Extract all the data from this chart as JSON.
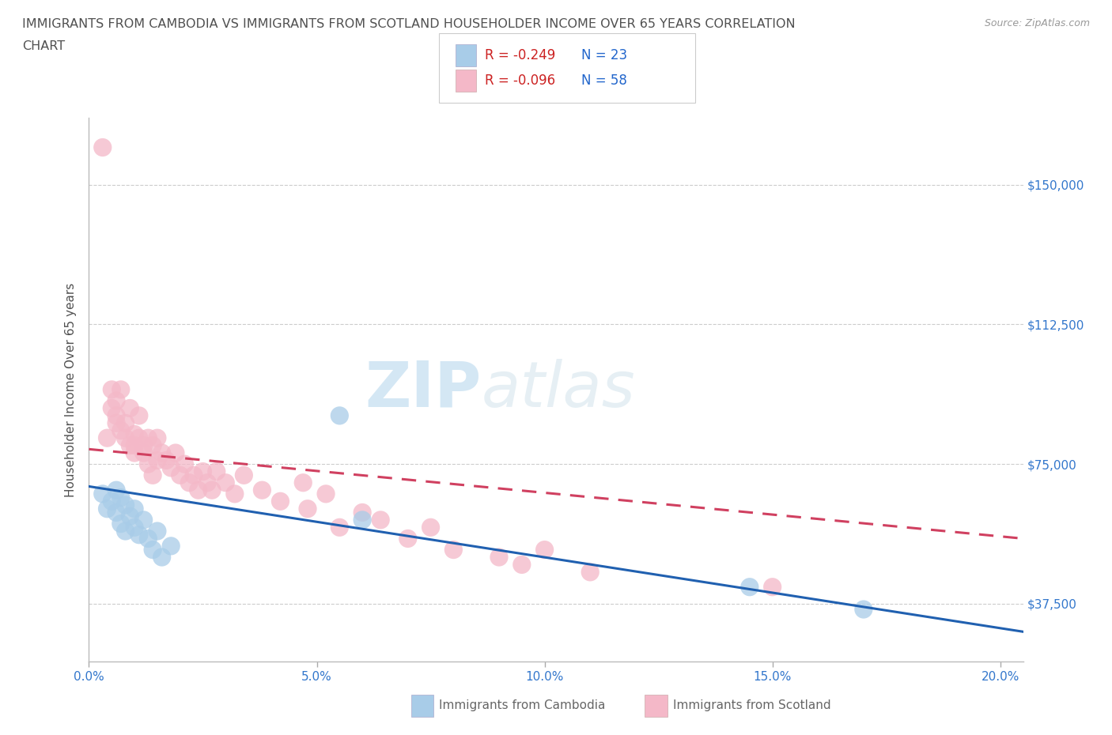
{
  "title_line1": "IMMIGRANTS FROM CAMBODIA VS IMMIGRANTS FROM SCOTLAND HOUSEHOLDER INCOME OVER 65 YEARS CORRELATION",
  "title_line2": "CHART",
  "source": "Source: ZipAtlas.com",
  "ylabel": "Householder Income Over 65 years",
  "xlim": [
    0.0,
    0.205
  ],
  "ylim": [
    22000,
    168000
  ],
  "yticks": [
    37500,
    75000,
    112500,
    150000
  ],
  "ytick_labels": [
    "$37,500",
    "$75,000",
    "$112,500",
    "$150,000"
  ],
  "xticks": [
    0.0,
    0.05,
    0.1,
    0.15,
    0.2
  ],
  "xtick_labels": [
    "0.0%",
    "5.0%",
    "10.0%",
    "15.0%",
    "20.0%"
  ],
  "watermark_zip": "ZIP",
  "watermark_atlas": "atlas",
  "legend_R_cambodia": "R = -0.249",
  "legend_N_cambodia": "N = 23",
  "legend_R_scotland": "R = -0.096",
  "legend_N_scotland": "N = 58",
  "cambodia_color": "#a8cce8",
  "scotland_color": "#f4b8c8",
  "trendline_cambodia_color": "#2060b0",
  "trendline_scotland_color": "#d04060",
  "background_color": "#ffffff",
  "grid_color": "#cccccc",
  "title_color": "#505050",
  "axis_label_color": "#505050",
  "tick_label_color": "#3377cc",
  "legend_R_color": "#cc2222",
  "legend_N_color": "#2266cc",
  "legend_label_color": "#666666",
  "cambodia_x": [
    0.003,
    0.004,
    0.005,
    0.006,
    0.006,
    0.007,
    0.007,
    0.008,
    0.008,
    0.009,
    0.01,
    0.01,
    0.011,
    0.012,
    0.013,
    0.014,
    0.015,
    0.016,
    0.018,
    0.055,
    0.06,
    0.145,
    0.17
  ],
  "cambodia_y": [
    67000,
    63000,
    65000,
    62000,
    68000,
    59000,
    66000,
    64000,
    57000,
    61000,
    58000,
    63000,
    56000,
    60000,
    55000,
    52000,
    57000,
    50000,
    53000,
    88000,
    60000,
    42000,
    36000
  ],
  "scotland_x": [
    0.003,
    0.004,
    0.005,
    0.005,
    0.006,
    0.006,
    0.006,
    0.007,
    0.007,
    0.008,
    0.008,
    0.009,
    0.009,
    0.01,
    0.01,
    0.01,
    0.011,
    0.011,
    0.012,
    0.012,
    0.013,
    0.013,
    0.014,
    0.014,
    0.015,
    0.015,
    0.016,
    0.017,
    0.018,
    0.019,
    0.02,
    0.021,
    0.022,
    0.023,
    0.024,
    0.025,
    0.026,
    0.027,
    0.028,
    0.03,
    0.032,
    0.034,
    0.038,
    0.042,
    0.047,
    0.048,
    0.052,
    0.055,
    0.06,
    0.064,
    0.07,
    0.075,
    0.08,
    0.09,
    0.095,
    0.1,
    0.11,
    0.15
  ],
  "scotland_y": [
    160000,
    82000,
    90000,
    95000,
    86000,
    92000,
    88000,
    84000,
    95000,
    86000,
    82000,
    80000,
    90000,
    80000,
    83000,
    78000,
    82000,
    88000,
    80000,
    78000,
    82000,
    75000,
    80000,
    72000,
    82000,
    76000,
    78000,
    76000,
    74000,
    78000,
    72000,
    75000,
    70000,
    72000,
    68000,
    73000,
    70000,
    68000,
    73000,
    70000,
    67000,
    72000,
    68000,
    65000,
    70000,
    63000,
    67000,
    58000,
    62000,
    60000,
    55000,
    58000,
    52000,
    50000,
    48000,
    52000,
    46000,
    42000
  ],
  "trendline_cam_x0": 0.0,
  "trendline_cam_y0": 69000,
  "trendline_cam_x1": 0.205,
  "trendline_cam_y1": 30000,
  "trendline_sco_x0": 0.0,
  "trendline_sco_y0": 79000,
  "trendline_sco_x1": 0.205,
  "trendline_sco_y1": 55000
}
